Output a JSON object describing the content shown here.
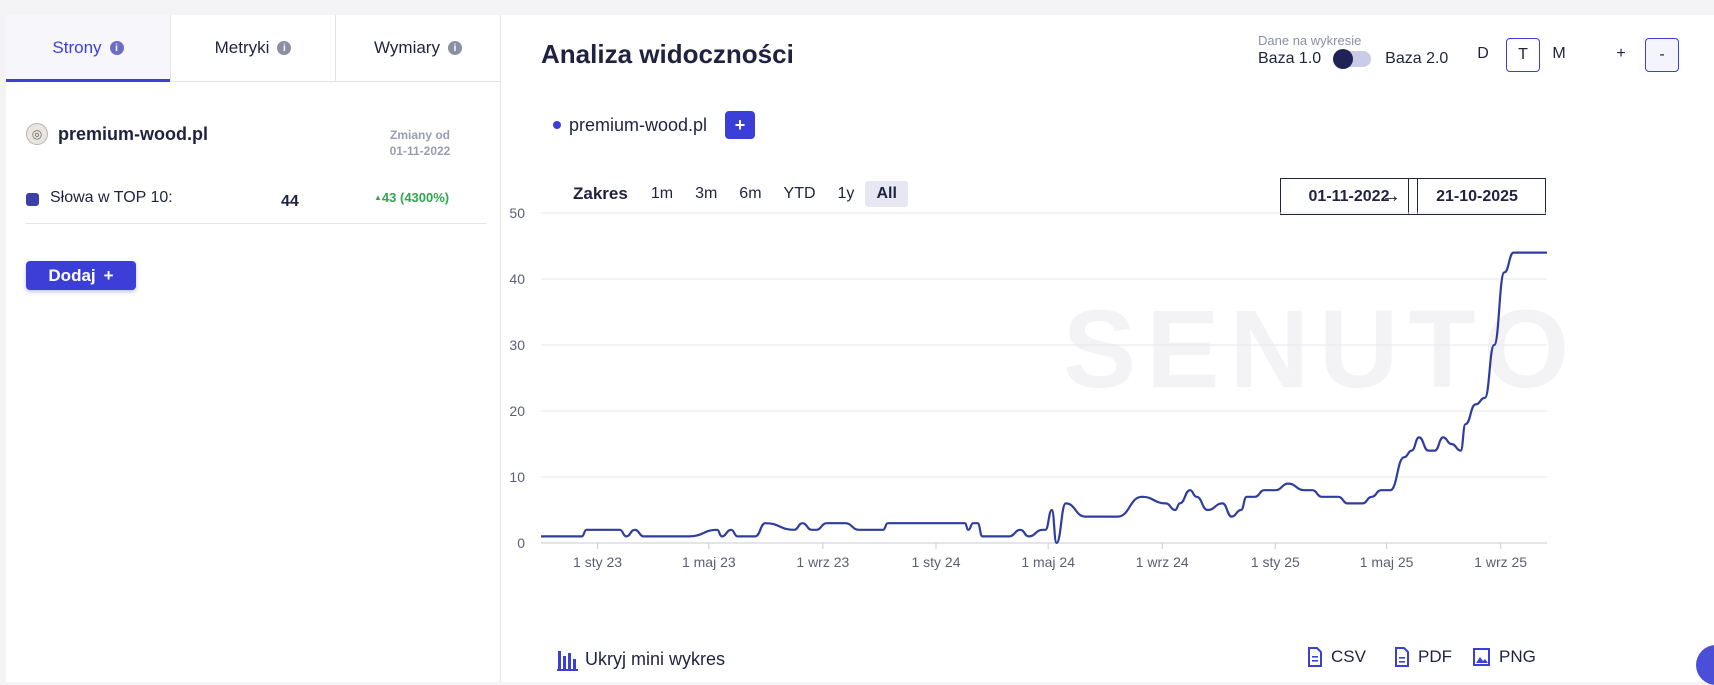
{
  "left_panel": {
    "tabs": [
      {
        "label": "Strony",
        "active": true
      },
      {
        "label": "Metryki",
        "active": false
      },
      {
        "label": "Wymiary",
        "active": false
      }
    ],
    "domain": "premium-wood.pl",
    "changes_label": "Zmiany od",
    "changes_date": "01-11-2022",
    "metric": {
      "label": "Słowa w TOP 10:",
      "value": "44",
      "change": "43 (4300%)",
      "color": "#3b3fa8"
    },
    "add_button": "Dodaj"
  },
  "header": {
    "title": "Analiza widoczności",
    "data_caption": "Dane na wykresie",
    "base_left": "Baza 1.0",
    "base_right": "Baza 2.0",
    "periods": [
      {
        "label": "D",
        "active": false
      },
      {
        "label": "T",
        "active": true
      },
      {
        "label": "M",
        "active": false
      }
    ],
    "zoom_in": "+",
    "zoom_out": "-"
  },
  "legend": {
    "domain": "premium-wood.pl",
    "add": "+"
  },
  "range": {
    "label": "Zakres",
    "options": [
      {
        "label": "1m",
        "active": false
      },
      {
        "label": "3m",
        "active": false
      },
      {
        "label": "6m",
        "active": false
      },
      {
        "label": "YTD",
        "active": false
      },
      {
        "label": "1y",
        "active": false
      },
      {
        "label": "All",
        "active": true
      }
    ],
    "date_from": "01-11-2022",
    "date_to": "21-10-2025",
    "arrow": "→"
  },
  "chart_data": {
    "type": "line",
    "watermark": "SENUTO",
    "y_ticks": [
      0,
      10,
      20,
      30,
      40,
      50
    ],
    "ylim": [
      0,
      50
    ],
    "x_ticks": [
      {
        "label": "1 sty 23",
        "date": "2023-01-01"
      },
      {
        "label": "1 maj 23",
        "date": "2023-05-01"
      },
      {
        "label": "1 wrz 23",
        "date": "2023-09-01"
      },
      {
        "label": "1 sty 24",
        "date": "2024-01-01"
      },
      {
        "label": "1 maj 24",
        "date": "2024-05-01"
      },
      {
        "label": "1 wrz 24",
        "date": "2024-09-01"
      },
      {
        "label": "1 sty 25",
        "date": "2025-01-01"
      },
      {
        "label": "1 maj 25",
        "date": "2025-05-01"
      },
      {
        "label": "1 wrz 25",
        "date": "2025-09-01"
      }
    ],
    "xlim": [
      "2022-11-01",
      "2025-10-21"
    ],
    "line_color": "#2f3da0",
    "series": [
      {
        "name": "premium-wood.pl",
        "x": [
          "2022-11-01",
          "2022-12-15",
          "2022-12-20",
          "2023-01-25",
          "2023-02-01",
          "2023-02-10",
          "2023-02-20",
          "2023-03-01",
          "2023-04-10",
          "2023-05-10",
          "2023-05-15",
          "2023-05-25",
          "2023-06-01",
          "2023-06-10",
          "2023-06-20",
          "2023-07-01",
          "2023-08-01",
          "2023-08-10",
          "2023-08-20",
          "2023-08-25",
          "2023-09-05",
          "2023-09-15",
          "2023-09-25",
          "2023-10-10",
          "2023-11-05",
          "2023-11-10",
          "2024-02-01",
          "2024-02-05",
          "2024-02-10",
          "2024-02-15",
          "2024-02-20",
          "2024-03-20",
          "2024-04-01",
          "2024-04-10",
          "2024-04-25",
          "2024-04-28",
          "2024-05-05",
          "2024-05-10",
          "2024-05-20",
          "2024-06-10",
          "2024-06-20",
          "2024-06-25",
          "2024-07-05",
          "2024-07-15",
          "2024-08-10",
          "2024-09-05",
          "2024-09-15",
          "2024-09-20",
          "2024-10-01",
          "2024-10-08",
          "2024-10-20",
          "2024-11-05",
          "2024-11-15",
          "2024-11-25",
          "2024-12-01",
          "2024-12-10",
          "2024-12-20",
          "2025-01-01",
          "2025-01-15",
          "2025-02-01",
          "2025-02-10",
          "2025-02-20",
          "2025-03-10",
          "2025-03-20",
          "2025-04-05",
          "2025-04-15",
          "2025-04-25",
          "2025-05-05",
          "2025-05-20",
          "2025-05-28",
          "2025-06-05",
          "2025-06-15",
          "2025-06-22",
          "2025-07-01",
          "2025-07-10",
          "2025-07-20",
          "2025-07-25",
          "2025-08-05",
          "2025-08-15",
          "2025-08-25",
          "2025-09-05",
          "2025-09-15",
          "2025-09-22",
          "2025-10-01",
          "2025-10-21"
        ],
        "values": [
          1,
          1,
          2,
          2,
          1,
          2,
          1,
          1,
          1,
          2,
          1,
          2,
          1,
          1,
          1,
          3,
          2,
          3,
          2,
          2,
          3,
          3,
          3,
          2,
          2,
          3,
          3,
          2,
          3,
          3,
          1,
          1,
          2,
          1,
          2,
          2,
          5,
          0,
          6,
          4,
          4,
          4,
          4,
          4,
          7,
          6,
          5,
          6,
          8,
          7,
          5,
          6,
          4,
          5,
          7,
          7,
          8,
          8,
          9,
          8,
          8,
          7,
          7,
          6,
          6,
          7,
          8,
          8,
          13,
          14,
          16,
          14,
          14,
          16,
          15,
          14,
          18,
          21,
          22,
          30,
          41,
          44,
          44,
          44,
          44
        ]
      }
    ]
  },
  "footer": {
    "hide_chart": "Ukryj mini wykres",
    "export_csv": "CSV",
    "export_pdf": "PDF",
    "export_png": "PNG"
  }
}
